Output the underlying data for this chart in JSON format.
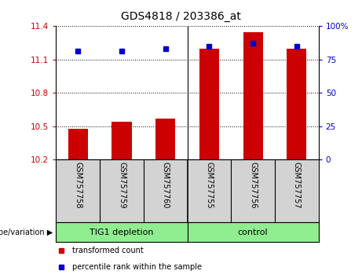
{
  "title": "GDS4818 / 203386_at",
  "samples": [
    "GSM757758",
    "GSM757759",
    "GSM757760",
    "GSM757755",
    "GSM757756",
    "GSM757757"
  ],
  "group_labels": [
    "TIG1 depletion",
    "control"
  ],
  "red_values": [
    10.48,
    10.54,
    10.57,
    11.2,
    11.35,
    11.2
  ],
  "blue_values": [
    11.18,
    11.18,
    11.2,
    11.22,
    11.25,
    11.22
  ],
  "y_min": 10.2,
  "y_max": 11.4,
  "y_ticks": [
    10.2,
    10.5,
    10.8,
    11.1,
    11.4
  ],
  "y_tick_labels": [
    "10.2",
    "10.5",
    "10.8",
    "11.1",
    "11.4"
  ],
  "y2_ticks": [
    0,
    25,
    50,
    75,
    100
  ],
  "y2_tick_labels": [
    "0",
    "25",
    "50",
    "75",
    "100%"
  ],
  "left_color": "#cc0000",
  "right_color": "#0000cc",
  "bar_color": "#cc0000",
  "dot_color": "#0000cc",
  "bg_samples": "#d3d3d3",
  "green_color": "#90EE90",
  "legend_red": "transformed count",
  "legend_blue": "percentile rank within the sample",
  "genotype_label": "genotype/variation"
}
